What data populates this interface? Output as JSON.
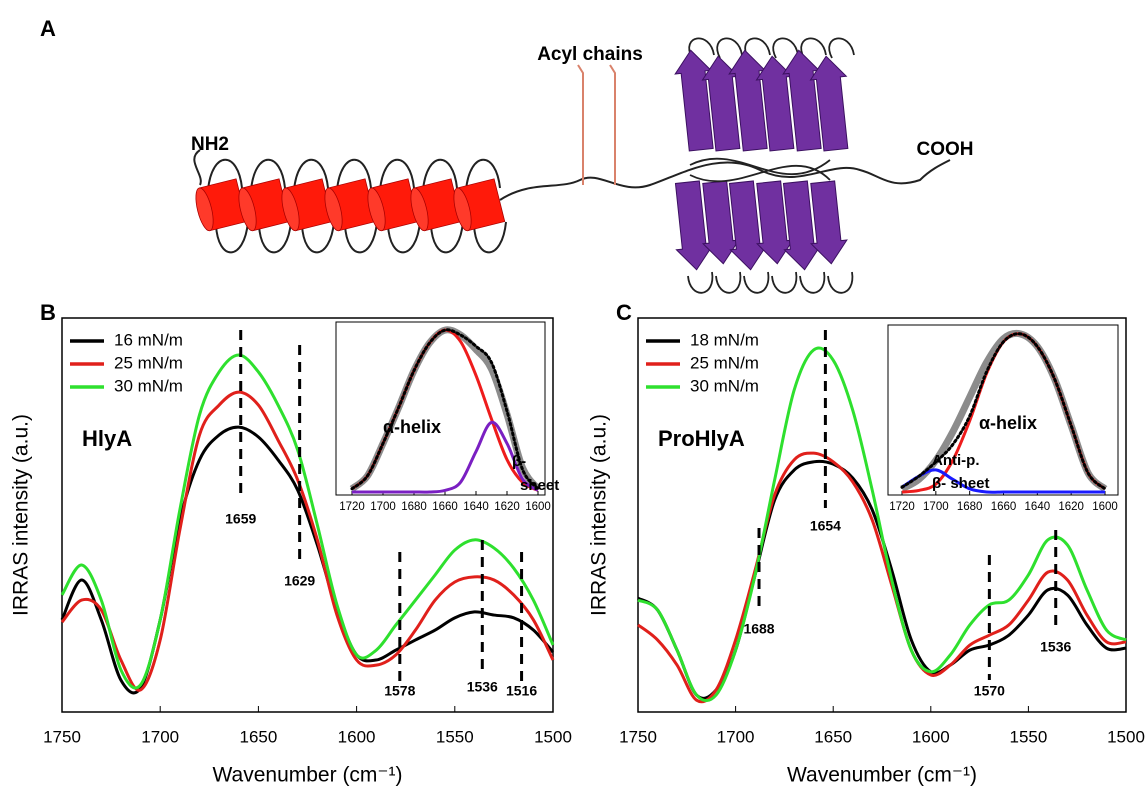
{
  "diagram": {
    "panel_label": "A",
    "labels": [
      "Acyl chains",
      "NH2",
      "COOH"
    ]
  },
  "chart_data": [
    {
      "type": "line",
      "panel_label": "B",
      "title": "HlyA",
      "x_label": "Wavenumber (cm⁻¹)",
      "y_label": "IRRAS intensity (a.u.)",
      "x": [
        1750,
        1740,
        1730,
        1720,
        1710,
        1700,
        1690,
        1680,
        1670,
        1660,
        1650,
        1640,
        1630,
        1620,
        1610,
        1600,
        1590,
        1580,
        1570,
        1560,
        1550,
        1540,
        1530,
        1520,
        1510,
        1500
      ],
      "xlim": [
        1750,
        1500
      ],
      "xticks": [
        1750,
        1700,
        1650,
        1600,
        1550,
        1500
      ],
      "ylim": [
        0,
        1
      ],
      "legend": "upper left",
      "series": [
        {
          "name": "16 mN/m",
          "color": "#000000",
          "values": [
            0.234,
            0.335,
            0.234,
            0.081,
            0.061,
            0.234,
            0.487,
            0.64,
            0.703,
            0.723,
            0.698,
            0.64,
            0.563,
            0.424,
            0.259,
            0.145,
            0.132,
            0.157,
            0.183,
            0.208,
            0.239,
            0.254,
            0.246,
            0.239,
            0.208,
            0.152
          ]
        },
        {
          "name": "25 mN/m",
          "color": "#e0201b",
          "values": [
            0.228,
            0.284,
            0.259,
            0.132,
            0.056,
            0.183,
            0.462,
            0.703,
            0.779,
            0.812,
            0.779,
            0.69,
            0.589,
            0.437,
            0.246,
            0.132,
            0.119,
            0.145,
            0.208,
            0.284,
            0.33,
            0.343,
            0.335,
            0.297,
            0.234,
            0.132
          ]
        },
        {
          "name": "30 mN/m",
          "color": "#2ee02e",
          "values": [
            0.297,
            0.373,
            0.284,
            0.107,
            0.069,
            0.234,
            0.513,
            0.754,
            0.863,
            0.906,
            0.863,
            0.779,
            0.665,
            0.475,
            0.272,
            0.145,
            0.157,
            0.221,
            0.284,
            0.348,
            0.411,
            0.437,
            0.416,
            0.365,
            0.284,
            0.17
          ]
        }
      ],
      "annotations": [
        1659,
        1629,
        1578,
        1536,
        1516
      ]
    },
    {
      "type": "line",
      "x": [
        1720,
        1710,
        1700,
        1690,
        1680,
        1670,
        1660,
        1650,
        1640,
        1630,
        1620,
        1610,
        1600
      ],
      "xlim": [
        1720,
        1600
      ],
      "xticks": [
        1720,
        1700,
        1680,
        1660,
        1640,
        1620,
        1600
      ],
      "ylim": [
        0,
        1.05
      ],
      "series": [
        {
          "color": "#8c8c8c",
          "values": [
            0.02,
            0.1,
            0.3,
            0.52,
            0.75,
            0.92,
            1.0,
            0.97,
            0.88,
            0.76,
            0.48,
            0.15,
            0.02
          ]
        },
        {
          "color": "#ee1c1c",
          "values": [
            0.02,
            0.1,
            0.3,
            0.52,
            0.75,
            0.92,
            1.0,
            0.93,
            0.72,
            0.45,
            0.2,
            0.06,
            0.01
          ]
        },
        {
          "color": "#7a1fc2",
          "values": [
            0,
            0,
            0,
            0,
            0,
            0,
            0.01,
            0.06,
            0.25,
            0.43,
            0.3,
            0.08,
            0.01
          ]
        },
        {
          "color": "#000000",
          "dash": "dotted",
          "values": [
            0.02,
            0.1,
            0.3,
            0.52,
            0.75,
            0.92,
            1.0,
            0.97,
            0.9,
            0.8,
            0.5,
            0.14,
            0.02
          ]
        }
      ],
      "annotations": [
        "α-helix",
        "β-",
        "sheet"
      ]
    },
    {
      "type": "line",
      "panel_label": "C",
      "title": "ProHlyA",
      "x_label": "Wavenumber (cm⁻¹)",
      "y_label": "IRRAS intensity (a.u.)",
      "x": [
        1750,
        1740,
        1730,
        1720,
        1710,
        1700,
        1690,
        1680,
        1670,
        1660,
        1650,
        1640,
        1630,
        1620,
        1610,
        1600,
        1590,
        1580,
        1570,
        1560,
        1550,
        1540,
        1530,
        1520,
        1510,
        1500
      ],
      "xlim": [
        1750,
        1500
      ],
      "xticks": [
        1750,
        1700,
        1650,
        1600,
        1550,
        1500
      ],
      "ylim": [
        0,
        1
      ],
      "legend": "upper left",
      "series": [
        {
          "name": "18 mN/m",
          "color": "#000000",
          "values": [
            0.289,
            0.259,
            0.157,
            0.043,
            0.056,
            0.157,
            0.348,
            0.538,
            0.614,
            0.635,
            0.629,
            0.594,
            0.513,
            0.36,
            0.183,
            0.102,
            0.119,
            0.157,
            0.17,
            0.195,
            0.246,
            0.31,
            0.297,
            0.221,
            0.162,
            0.162
          ]
        },
        {
          "name": "25 mN/m",
          "color": "#e0201b",
          "values": [
            0.221,
            0.183,
            0.119,
            0.03,
            0.056,
            0.183,
            0.36,
            0.551,
            0.64,
            0.657,
            0.635,
            0.584,
            0.487,
            0.322,
            0.157,
            0.094,
            0.119,
            0.17,
            0.195,
            0.221,
            0.284,
            0.355,
            0.335,
            0.246,
            0.178,
            0.178
          ]
        },
        {
          "name": "30 mN/m",
          "color": "#2ee02e",
          "values": [
            0.284,
            0.259,
            0.157,
            0.043,
            0.043,
            0.157,
            0.348,
            0.589,
            0.817,
            0.919,
            0.893,
            0.766,
            0.563,
            0.335,
            0.157,
            0.102,
            0.145,
            0.221,
            0.272,
            0.284,
            0.348,
            0.437,
            0.424,
            0.31,
            0.208,
            0.183
          ]
        }
      ],
      "annotations": [
        1654,
        1688,
        1570,
        1536
      ]
    },
    {
      "type": "line",
      "x": [
        1720,
        1710,
        1700,
        1690,
        1680,
        1670,
        1660,
        1650,
        1640,
        1630,
        1620,
        1610,
        1600
      ],
      "xlim": [
        1720,
        1600
      ],
      "xticks": [
        1720,
        1700,
        1680,
        1660,
        1640,
        1620,
        1600
      ],
      "ylim": [
        0,
        1.05
      ],
      "series": [
        {
          "color": "#8c8c8c",
          "values": [
            0.02,
            0.08,
            0.2,
            0.38,
            0.6,
            0.82,
            0.97,
            1.0,
            0.92,
            0.72,
            0.42,
            0.12,
            0.02
          ]
        },
        {
          "color": "#ee1c1c",
          "values": [
            0,
            0.01,
            0.05,
            0.2,
            0.45,
            0.75,
            0.95,
            1.0,
            0.92,
            0.72,
            0.42,
            0.12,
            0.02
          ]
        },
        {
          "color": "#1a1aff",
          "values": [
            0.03,
            0.1,
            0.14,
            0.08,
            0.02,
            0,
            0,
            0,
            0,
            0,
            0,
            0,
            0
          ]
        },
        {
          "color": "#000000",
          "dash": "dotted",
          "values": [
            0.03,
            0.1,
            0.19,
            0.3,
            0.48,
            0.76,
            0.95,
            1.0,
            0.92,
            0.72,
            0.42,
            0.12,
            0.02
          ]
        }
      ],
      "annotations": [
        "α-helix",
        "Anti-p.",
        "β- sheet"
      ]
    }
  ]
}
